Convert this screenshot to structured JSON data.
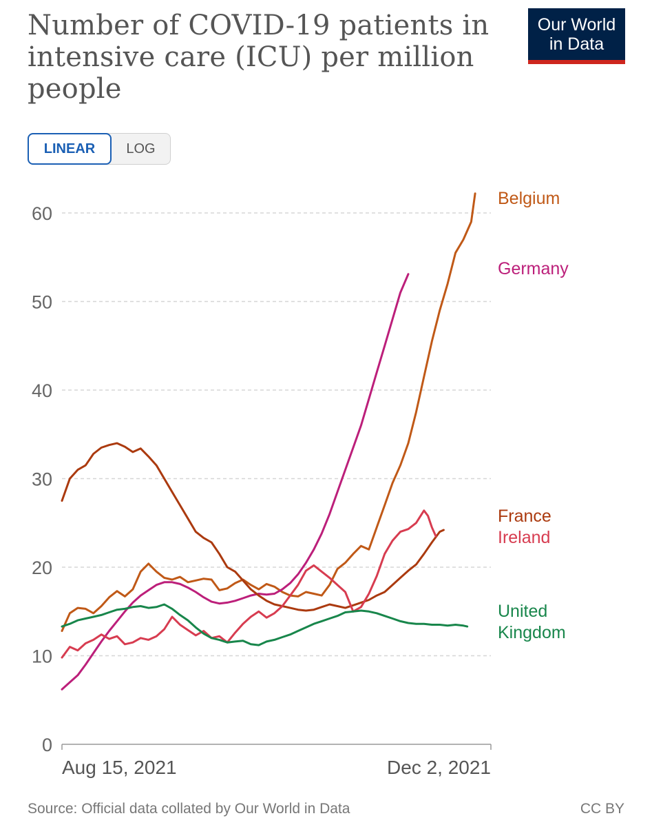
{
  "title": "Number of COVID-19 patients in intensive care (ICU) per million people",
  "logo": {
    "line1": "Our World",
    "line2": "in Data",
    "bg": "#002147",
    "accent": "#ce261e"
  },
  "scale_toggle": {
    "linear_label": "LINEAR",
    "log_label": "LOG",
    "active": "LINEAR"
  },
  "footer": {
    "source": "Source: Official data collated by Our World in Data",
    "license": "CC BY"
  },
  "chart_data": {
    "type": "line",
    "title": "Number of COVID-19 patients in intensive care (ICU) per million people",
    "xlabel": "",
    "ylabel": "",
    "x_tick_labels": [
      "Aug 15, 2021",
      "Dec 2, 2021"
    ],
    "x_range_days": [
      0,
      109
    ],
    "ylim": [
      0,
      62
    ],
    "y_ticks": [
      0,
      10,
      20,
      30,
      40,
      50,
      60
    ],
    "grid": "horizontal dashed",
    "legend": "direct labels at right end of lines",
    "series": [
      {
        "name": "Belgium",
        "color": "#c05917",
        "label_lines": [
          "Belgium"
        ],
        "points": [
          [
            0,
            12.8
          ],
          [
            2,
            14.8
          ],
          [
            4,
            15.4
          ],
          [
            6,
            15.3
          ],
          [
            8,
            14.8
          ],
          [
            10,
            15.6
          ],
          [
            12,
            16.6
          ],
          [
            14,
            17.3
          ],
          [
            16,
            16.7
          ],
          [
            18,
            17.5
          ],
          [
            20,
            19.5
          ],
          [
            22,
            20.4
          ],
          [
            24,
            19.5
          ],
          [
            26,
            18.8
          ],
          [
            28,
            18.6
          ],
          [
            30,
            18.9
          ],
          [
            32,
            18.3
          ],
          [
            34,
            18.5
          ],
          [
            36,
            18.7
          ],
          [
            38,
            18.6
          ],
          [
            40,
            17.4
          ],
          [
            42,
            17.6
          ],
          [
            44,
            18.2
          ],
          [
            46,
            18.6
          ],
          [
            48,
            18.0
          ],
          [
            50,
            17.5
          ],
          [
            52,
            18.1
          ],
          [
            54,
            17.8
          ],
          [
            56,
            17.2
          ],
          [
            58,
            16.8
          ],
          [
            60,
            16.7
          ],
          [
            62,
            17.2
          ],
          [
            64,
            17.0
          ],
          [
            66,
            16.8
          ],
          [
            68,
            18.0
          ],
          [
            70,
            19.8
          ],
          [
            72,
            20.5
          ],
          [
            74,
            21.5
          ],
          [
            76,
            22.4
          ],
          [
            78,
            22.0
          ],
          [
            80,
            24.5
          ],
          [
            82,
            27.0
          ],
          [
            84,
            29.5
          ],
          [
            86,
            31.5
          ],
          [
            88,
            34.0
          ],
          [
            90,
            37.5
          ],
          [
            92,
            41.5
          ],
          [
            94,
            45.5
          ],
          [
            96,
            49.0
          ],
          [
            98,
            52.0
          ],
          [
            100,
            55.5
          ],
          [
            102,
            57.0
          ],
          [
            104,
            59.0
          ],
          [
            105,
            62.2
          ]
        ]
      },
      {
        "name": "Germany",
        "color": "#bc1f7a",
        "label_lines": [
          "Germany"
        ],
        "points": [
          [
            0,
            6.2
          ],
          [
            2,
            7.0
          ],
          [
            4,
            7.8
          ],
          [
            6,
            9.0
          ],
          [
            8,
            10.3
          ],
          [
            10,
            11.6
          ],
          [
            12,
            12.8
          ],
          [
            14,
            13.9
          ],
          [
            16,
            15.0
          ],
          [
            18,
            16.0
          ],
          [
            20,
            16.8
          ],
          [
            22,
            17.4
          ],
          [
            24,
            18.0
          ],
          [
            26,
            18.3
          ],
          [
            28,
            18.3
          ],
          [
            30,
            18.1
          ],
          [
            32,
            17.7
          ],
          [
            34,
            17.2
          ],
          [
            36,
            16.6
          ],
          [
            38,
            16.1
          ],
          [
            40,
            15.9
          ],
          [
            42,
            16.0
          ],
          [
            44,
            16.2
          ],
          [
            46,
            16.5
          ],
          [
            48,
            16.8
          ],
          [
            50,
            17.0
          ],
          [
            52,
            16.9
          ],
          [
            54,
            17.0
          ],
          [
            56,
            17.5
          ],
          [
            58,
            18.2
          ],
          [
            60,
            19.2
          ],
          [
            62,
            20.5
          ],
          [
            64,
            22.0
          ],
          [
            66,
            23.8
          ],
          [
            68,
            26.0
          ],
          [
            70,
            28.5
          ],
          [
            72,
            31.0
          ],
          [
            74,
            33.5
          ],
          [
            76,
            36.0
          ],
          [
            78,
            39.0
          ],
          [
            80,
            42.0
          ],
          [
            82,
            45.0
          ],
          [
            84,
            48.0
          ],
          [
            86,
            51.0
          ],
          [
            88,
            53.1
          ]
        ]
      },
      {
        "name": "France",
        "color": "#ab3a0f",
        "label_lines": [
          "France"
        ],
        "points": [
          [
            0,
            27.5
          ],
          [
            2,
            30.0
          ],
          [
            4,
            31.0
          ],
          [
            6,
            31.5
          ],
          [
            8,
            32.8
          ],
          [
            10,
            33.5
          ],
          [
            12,
            33.8
          ],
          [
            14,
            34.0
          ],
          [
            16,
            33.6
          ],
          [
            18,
            33.0
          ],
          [
            20,
            33.4
          ],
          [
            22,
            32.5
          ],
          [
            24,
            31.5
          ],
          [
            26,
            30.0
          ],
          [
            28,
            28.5
          ],
          [
            30,
            27.0
          ],
          [
            32,
            25.5
          ],
          [
            34,
            24.0
          ],
          [
            36,
            23.3
          ],
          [
            38,
            22.8
          ],
          [
            40,
            21.5
          ],
          [
            42,
            20.0
          ],
          [
            44,
            19.5
          ],
          [
            46,
            18.5
          ],
          [
            48,
            17.5
          ],
          [
            50,
            16.8
          ],
          [
            52,
            16.2
          ],
          [
            54,
            15.8
          ],
          [
            56,
            15.6
          ],
          [
            58,
            15.4
          ],
          [
            60,
            15.2
          ],
          [
            62,
            15.1
          ],
          [
            64,
            15.2
          ],
          [
            66,
            15.5
          ],
          [
            68,
            15.8
          ],
          [
            70,
            15.6
          ],
          [
            72,
            15.4
          ],
          [
            74,
            15.7
          ],
          [
            76,
            16.0
          ],
          [
            78,
            16.3
          ],
          [
            80,
            16.8
          ],
          [
            82,
            17.2
          ],
          [
            84,
            18.0
          ],
          [
            86,
            18.8
          ],
          [
            88,
            19.6
          ],
          [
            90,
            20.3
          ],
          [
            92,
            21.5
          ],
          [
            94,
            22.8
          ],
          [
            96,
            24.0
          ],
          [
            97,
            24.2
          ]
        ]
      },
      {
        "name": "Ireland",
        "color": "#d73c50",
        "label_lines": [
          "Ireland"
        ],
        "points": [
          [
            0,
            9.8
          ],
          [
            2,
            11.0
          ],
          [
            4,
            10.6
          ],
          [
            6,
            11.4
          ],
          [
            8,
            11.8
          ],
          [
            10,
            12.4
          ],
          [
            12,
            11.9
          ],
          [
            14,
            12.2
          ],
          [
            16,
            11.3
          ],
          [
            18,
            11.5
          ],
          [
            20,
            12.0
          ],
          [
            22,
            11.8
          ],
          [
            24,
            12.2
          ],
          [
            26,
            13.0
          ],
          [
            28,
            14.4
          ],
          [
            30,
            13.5
          ],
          [
            32,
            12.9
          ],
          [
            34,
            12.3
          ],
          [
            36,
            12.8
          ],
          [
            38,
            12.0
          ],
          [
            40,
            12.2
          ],
          [
            42,
            11.5
          ],
          [
            44,
            12.6
          ],
          [
            46,
            13.6
          ],
          [
            48,
            14.4
          ],
          [
            50,
            15.0
          ],
          [
            52,
            14.3
          ],
          [
            54,
            14.8
          ],
          [
            56,
            15.6
          ],
          [
            58,
            16.8
          ],
          [
            60,
            18.0
          ],
          [
            62,
            19.6
          ],
          [
            64,
            20.2
          ],
          [
            66,
            19.5
          ],
          [
            68,
            18.8
          ],
          [
            70,
            18.0
          ],
          [
            72,
            17.2
          ],
          [
            74,
            15.0
          ],
          [
            76,
            15.5
          ],
          [
            78,
            17.0
          ],
          [
            80,
            19.0
          ],
          [
            82,
            21.5
          ],
          [
            84,
            23.0
          ],
          [
            86,
            24.0
          ],
          [
            88,
            24.3
          ],
          [
            90,
            25.0
          ],
          [
            92,
            26.4
          ],
          [
            93,
            25.8
          ],
          [
            94,
            24.5
          ],
          [
            95,
            23.5
          ]
        ]
      },
      {
        "name": "United Kingdom",
        "color": "#18864b",
        "label_lines": [
          "United",
          "Kingdom"
        ],
        "points": [
          [
            0,
            13.3
          ],
          [
            2,
            13.6
          ],
          [
            4,
            14.0
          ],
          [
            6,
            14.2
          ],
          [
            8,
            14.4
          ],
          [
            10,
            14.6
          ],
          [
            12,
            14.9
          ],
          [
            14,
            15.2
          ],
          [
            16,
            15.3
          ],
          [
            18,
            15.5
          ],
          [
            20,
            15.6
          ],
          [
            22,
            15.4
          ],
          [
            24,
            15.5
          ],
          [
            26,
            15.8
          ],
          [
            28,
            15.3
          ],
          [
            30,
            14.6
          ],
          [
            32,
            14.0
          ],
          [
            34,
            13.2
          ],
          [
            36,
            12.5
          ],
          [
            38,
            12.0
          ],
          [
            40,
            11.8
          ],
          [
            42,
            11.5
          ],
          [
            44,
            11.6
          ],
          [
            46,
            11.7
          ],
          [
            48,
            11.3
          ],
          [
            50,
            11.2
          ],
          [
            52,
            11.6
          ],
          [
            54,
            11.8
          ],
          [
            56,
            12.1
          ],
          [
            58,
            12.4
          ],
          [
            60,
            12.8
          ],
          [
            62,
            13.2
          ],
          [
            64,
            13.6
          ],
          [
            66,
            13.9
          ],
          [
            68,
            14.2
          ],
          [
            70,
            14.5
          ],
          [
            72,
            14.9
          ],
          [
            74,
            15.0
          ],
          [
            76,
            15.1
          ],
          [
            78,
            15.0
          ],
          [
            80,
            14.8
          ],
          [
            82,
            14.5
          ],
          [
            84,
            14.2
          ],
          [
            86,
            13.9
          ],
          [
            88,
            13.7
          ],
          [
            90,
            13.6
          ],
          [
            92,
            13.6
          ],
          [
            94,
            13.5
          ],
          [
            96,
            13.5
          ],
          [
            98,
            13.4
          ],
          [
            100,
            13.5
          ],
          [
            102,
            13.4
          ],
          [
            103,
            13.3
          ]
        ]
      }
    ]
  }
}
